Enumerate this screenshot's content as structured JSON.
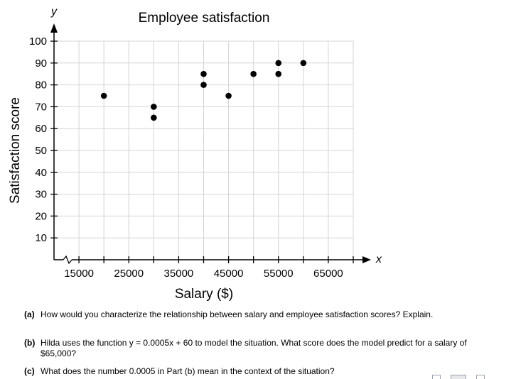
{
  "chart_data": {
    "type": "scatter",
    "title": "Employee satisfaction",
    "xlabel": "Salary ($)",
    "ylabel": "Satisfaction score",
    "x_axis_letter": "x",
    "y_axis_letter": "y",
    "xlim": [
      10000,
      70000
    ],
    "ylim": [
      0,
      100
    ],
    "x_ticks": [
      15000,
      25000,
      35000,
      45000,
      55000,
      65000
    ],
    "x_tick_labels": [
      "15000",
      "25000",
      "35000",
      "45000",
      "55000",
      "65000"
    ],
    "y_ticks": [
      10,
      20,
      30,
      40,
      50,
      60,
      70,
      80,
      90,
      100
    ],
    "y_tick_labels": [
      "10",
      "20",
      "30",
      "40",
      "50",
      "60",
      "70",
      "80",
      "90",
      "100"
    ],
    "x_axis_break": true,
    "grid": true,
    "points": [
      {
        "x": 20000,
        "y": 75
      },
      {
        "x": 30000,
        "y": 70
      },
      {
        "x": 30000,
        "y": 65
      },
      {
        "x": 40000,
        "y": 85
      },
      {
        "x": 40000,
        "y": 80
      },
      {
        "x": 45000,
        "y": 75
      },
      {
        "x": 50000,
        "y": 85
      },
      {
        "x": 55000,
        "y": 90
      },
      {
        "x": 55000,
        "y": 85
      },
      {
        "x": 60000,
        "y": 90
      }
    ],
    "marker_color": "#000000",
    "grid_color": "#d4d4d4"
  },
  "questions": [
    {
      "label": "(a)",
      "text": "How would you characterize the relationship between salary and employee satisfaction scores? Explain."
    },
    {
      "label": "(b)",
      "text": "Hilda uses the function y = 0.0005x + 60 to model the situation. What score does the model predict for a salary of $65,000?"
    },
    {
      "label": "(c)",
      "text": "What does the number 0.0005 in Part (b) mean in the context of the situation?"
    }
  ]
}
